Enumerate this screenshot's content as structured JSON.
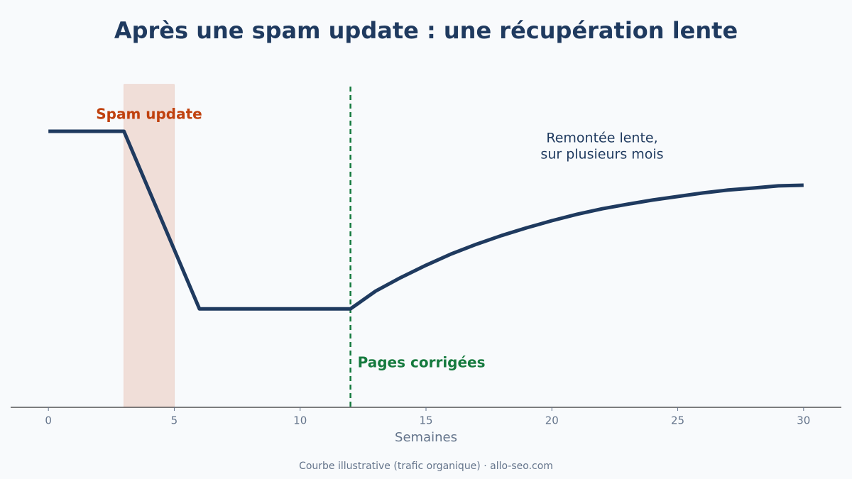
{
  "chart_data": {
    "type": "line",
    "title": "Après une spam update : une récupération lente",
    "x_label": "Semaines",
    "footer": "Courbe illustrative (trafic organique) · allo-seo.com",
    "x": [
      0,
      3,
      6,
      12,
      13,
      14,
      15,
      16,
      17,
      18,
      19,
      20,
      21,
      22,
      23,
      24,
      25,
      26,
      27,
      28,
      29,
      30
    ],
    "series": [
      {
        "name": "Trafic organique",
        "color": "#1f3a5f",
        "values": [
          85.5,
          85.5,
          30.5,
          30.5,
          36.0,
          40.2,
          44.0,
          47.5,
          50.5,
          53.2,
          55.6,
          57.8,
          59.8,
          61.5,
          62.9,
          64.2,
          65.3,
          66.4,
          67.3,
          67.9,
          68.6,
          68.8
        ]
      }
    ],
    "xlim": [
      -1.5,
      31.5
    ],
    "ylim": [
      0,
      100
    ],
    "xticks": [
      0,
      5,
      10,
      15,
      20,
      25,
      30
    ],
    "span": {
      "x": [
        3,
        5
      ],
      "label": "Spam update",
      "color": "#c0410e"
    },
    "vline": {
      "x": 12,
      "label": "Pages corrigées",
      "color": "#157a3e"
    },
    "note": [
      "Remontée lente,",
      "sur plusieurs mois"
    ]
  }
}
